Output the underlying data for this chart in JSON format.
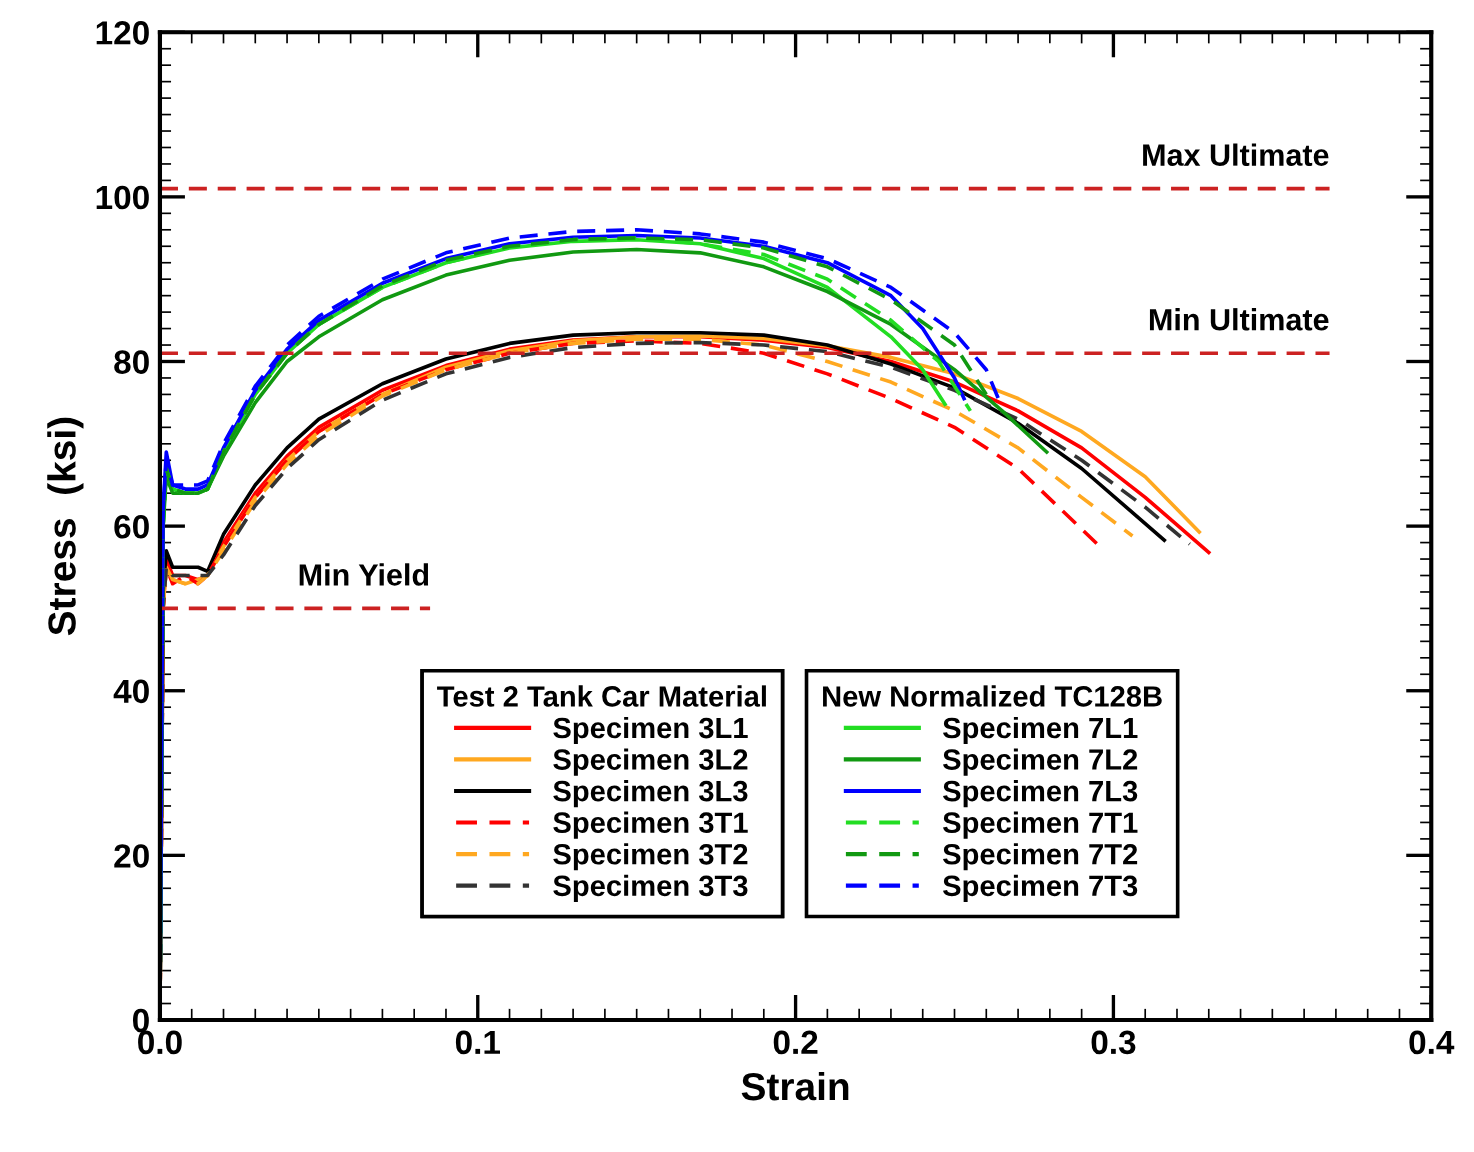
{
  "chart_data": {
    "type": "line",
    "xlabel": "Strain",
    "ylabel": "Stress  (ksi)",
    "xlim": [
      0,
      0.4
    ],
    "ylim": [
      0,
      120
    ],
    "xticks": [
      {
        "value": 0,
        "label": "0.0"
      },
      0.1,
      0.2,
      0.3,
      0.4
    ],
    "yticks": [
      0,
      20,
      40,
      60,
      80,
      100,
      120
    ],
    "grid": false,
    "legend": "bottom right",
    "legend_title": [
      "Test 2 Tank Car Material",
      "New Normalized TC128B"
    ],
    "series": [
      {
        "name": "Specimen 3L1",
        "color": "#ff0000",
        "line_style": "solid",
        "x": [
          0,
          0.001,
          0.002,
          0.004,
          0.008,
          0.012,
          0.015,
          0.02,
          0.03,
          0.04,
          0.05,
          0.07,
          0.09,
          0.11,
          0.13,
          0.15,
          0.17,
          0.19,
          0.21,
          0.23,
          0.25,
          0.27,
          0.29,
          0.31,
          0.33
        ],
        "values": [
          0,
          50,
          56,
          54,
          54,
          53.5,
          54,
          58,
          64,
          68.5,
          72,
          76.5,
          79.5,
          81.5,
          82.6,
          83,
          83,
          82.6,
          81.7,
          80,
          77.5,
          74,
          69.5,
          63.5,
          56.8
        ]
      },
      {
        "name": "Specimen 3L2",
        "color": "#ffa820",
        "line_style": "solid",
        "x": [
          0,
          0.001,
          0.002,
          0.004,
          0.008,
          0.012,
          0.015,
          0.02,
          0.03,
          0.04,
          0.05,
          0.07,
          0.09,
          0.11,
          0.13,
          0.15,
          0.17,
          0.19,
          0.21,
          0.23,
          0.25,
          0.27,
          0.29,
          0.31,
          0.327
        ],
        "values": [
          0,
          50,
          55,
          53.5,
          53,
          53.5,
          54,
          57.5,
          63.5,
          68,
          71.5,
          76,
          79.3,
          81.3,
          82.5,
          83,
          83.1,
          82.8,
          81.9,
          80.5,
          78.5,
          75.5,
          71.5,
          66,
          59.3
        ]
      },
      {
        "name": "Specimen 3L3",
        "color": "#000000",
        "line_style": "solid",
        "x": [
          0,
          0.001,
          0.002,
          0.004,
          0.008,
          0.012,
          0.015,
          0.02,
          0.03,
          0.04,
          0.05,
          0.07,
          0.09,
          0.11,
          0.13,
          0.15,
          0.17,
          0.19,
          0.21,
          0.23,
          0.25,
          0.27,
          0.29,
          0.316
        ],
        "values": [
          0,
          52,
          57,
          55,
          55,
          55,
          54.5,
          59,
          65,
          69.5,
          73,
          77.3,
          80.3,
          82.2,
          83.2,
          83.5,
          83.5,
          83.2,
          82,
          79.7,
          76.8,
          72.5,
          67,
          58.3
        ]
      },
      {
        "name": "Specimen 3T1",
        "color": "#ff0000",
        "line_style": "dashed",
        "x": [
          0,
          0.001,
          0.002,
          0.004,
          0.008,
          0.012,
          0.015,
          0.02,
          0.03,
          0.04,
          0.05,
          0.07,
          0.09,
          0.11,
          0.13,
          0.15,
          0.17,
          0.19,
          0.21,
          0.23,
          0.25,
          0.27,
          0.295
        ],
        "values": [
          0,
          50,
          55,
          53,
          54,
          53,
          54,
          57.5,
          63.5,
          68,
          71.5,
          76,
          79,
          81,
          82.2,
          82.5,
          82.2,
          81,
          78.5,
          75.5,
          72,
          67,
          57.8
        ]
      },
      {
        "name": "Specimen 3T2",
        "color": "#ffa820",
        "line_style": "dashed",
        "x": [
          0,
          0.001,
          0.002,
          0.004,
          0.008,
          0.012,
          0.015,
          0.02,
          0.03,
          0.04,
          0.05,
          0.07,
          0.09,
          0.11,
          0.13,
          0.15,
          0.17,
          0.19,
          0.21,
          0.23,
          0.25,
          0.27,
          0.29,
          0.306
        ],
        "values": [
          0,
          50,
          55,
          53.5,
          53,
          53,
          54,
          57,
          63,
          67.5,
          71,
          75.8,
          79,
          81,
          82.2,
          82.7,
          82.7,
          82,
          80,
          77.5,
          74,
          69.5,
          63.5,
          58.8
        ]
      },
      {
        "name": "Specimen 3T3",
        "color": "#333333",
        "line_style": "dashed",
        "x": [
          0,
          0.001,
          0.002,
          0.004,
          0.008,
          0.012,
          0.015,
          0.02,
          0.03,
          0.04,
          0.05,
          0.07,
          0.09,
          0.11,
          0.13,
          0.15,
          0.17,
          0.19,
          0.21,
          0.23,
          0.25,
          0.27,
          0.29,
          0.31,
          0.324
        ],
        "values": [
          0,
          50,
          55,
          54,
          54,
          54,
          54,
          56.5,
          62.5,
          67,
          70.5,
          75.3,
          78.5,
          80.5,
          81.7,
          82.2,
          82.3,
          82,
          81.2,
          79.3,
          76.5,
          73,
          68,
          62.3,
          57.8
        ]
      },
      {
        "name": "Specimen 7L1",
        "color": "#22dd22",
        "line_style": "solid",
        "x": [
          0,
          0.001,
          0.002,
          0.004,
          0.008,
          0.012,
          0.015,
          0.02,
          0.03,
          0.04,
          0.05,
          0.07,
          0.09,
          0.11,
          0.13,
          0.15,
          0.17,
          0.19,
          0.21,
          0.23,
          0.24,
          0.247
        ],
        "values": [
          0,
          60,
          68,
          64.5,
          64,
          64,
          64.5,
          69,
          76,
          81,
          84.5,
          89,
          92,
          93.8,
          94.6,
          94.8,
          94.3,
          92.5,
          89,
          83,
          79,
          74.8
        ]
      },
      {
        "name": "Specimen 7L2",
        "color": "#119911",
        "line_style": "solid",
        "x": [
          0,
          0.001,
          0.002,
          0.004,
          0.008,
          0.012,
          0.015,
          0.02,
          0.03,
          0.04,
          0.05,
          0.07,
          0.09,
          0.11,
          0.13,
          0.15,
          0.17,
          0.19,
          0.21,
          0.23,
          0.25,
          0.265,
          0.279
        ],
        "values": [
          0,
          60,
          66,
          64,
          64,
          64,
          64.5,
          68.5,
          75,
          80,
          83,
          87.5,
          90.5,
          92.3,
          93.3,
          93.6,
          93.2,
          91.5,
          88.5,
          84.5,
          79,
          74,
          69
        ]
      },
      {
        "name": "Specimen 7L3",
        "color": "#0000ff",
        "line_style": "solid",
        "x": [
          0,
          0.001,
          0.002,
          0.004,
          0.008,
          0.012,
          0.015,
          0.02,
          0.03,
          0.04,
          0.05,
          0.07,
          0.09,
          0.11,
          0.13,
          0.15,
          0.17,
          0.19,
          0.21,
          0.23,
          0.24,
          0.25,
          0.253
        ],
        "values": [
          0,
          62,
          69,
          65,
          64.5,
          64.5,
          65,
          69.5,
          76.5,
          81.5,
          85,
          89.5,
          92.5,
          94.3,
          95.1,
          95.3,
          95,
          94,
          92,
          88,
          84,
          78,
          75.5
        ]
      },
      {
        "name": "Specimen 7T1",
        "color": "#22dd22",
        "line_style": "dashed",
        "x": [
          0,
          0.001,
          0.002,
          0.004,
          0.008,
          0.012,
          0.015,
          0.02,
          0.03,
          0.04,
          0.05,
          0.07,
          0.09,
          0.11,
          0.13,
          0.15,
          0.17,
          0.19,
          0.21,
          0.23,
          0.245,
          0.255
        ],
        "values": [
          0,
          60,
          67,
          64.5,
          64,
          64,
          64.5,
          69,
          76,
          81,
          84.5,
          89,
          92,
          93.9,
          94.8,
          95,
          94.3,
          93,
          90,
          85,
          80,
          74
        ]
      },
      {
        "name": "Specimen 7T2",
        "color": "#119911",
        "line_style": "dashed",
        "x": [
          0,
          0.001,
          0.002,
          0.004,
          0.008,
          0.012,
          0.015,
          0.02,
          0.03,
          0.04,
          0.05,
          0.07,
          0.09,
          0.11,
          0.13,
          0.15,
          0.17,
          0.19,
          0.21,
          0.23,
          0.25,
          0.26
        ],
        "values": [
          0,
          60,
          67,
          64.5,
          64,
          64,
          64.5,
          69,
          76,
          81,
          84.5,
          89.2,
          92.3,
          94,
          94.8,
          95,
          94.8,
          93.8,
          91.5,
          87.5,
          82,
          76
        ]
      },
      {
        "name": "Specimen 7T3",
        "color": "#0000ff",
        "line_style": "dashed",
        "x": [
          0,
          0.001,
          0.002,
          0.004,
          0.008,
          0.012,
          0.015,
          0.02,
          0.03,
          0.04,
          0.05,
          0.07,
          0.09,
          0.11,
          0.13,
          0.15,
          0.17,
          0.19,
          0.21,
          0.23,
          0.25,
          0.26,
          0.264
        ],
        "values": [
          0,
          62,
          68,
          65,
          65,
          65,
          65.5,
          70,
          77,
          82,
          85.5,
          90,
          93.2,
          95,
          95.8,
          96,
          95.5,
          94.5,
          92.5,
          89,
          83.5,
          79,
          75.3
        ]
      },
      {
        "color": "#cc2222",
        "line_style": "dashed",
        "x": [
          0,
          0.368
        ],
        "values": [
          101,
          101
        ]
      },
      {
        "color": "#cc2222",
        "line_style": "dashed",
        "x": [
          0,
          0.368
        ],
        "values": [
          81,
          81
        ]
      },
      {
        "color": "#cc2222",
        "line_style": "dashed",
        "x": [
          0,
          0.085
        ],
        "values": [
          50,
          50
        ]
      }
    ],
    "annotations": [
      "Max Ultimate",
      "Min Ultimate",
      "Min Yield"
    ]
  }
}
